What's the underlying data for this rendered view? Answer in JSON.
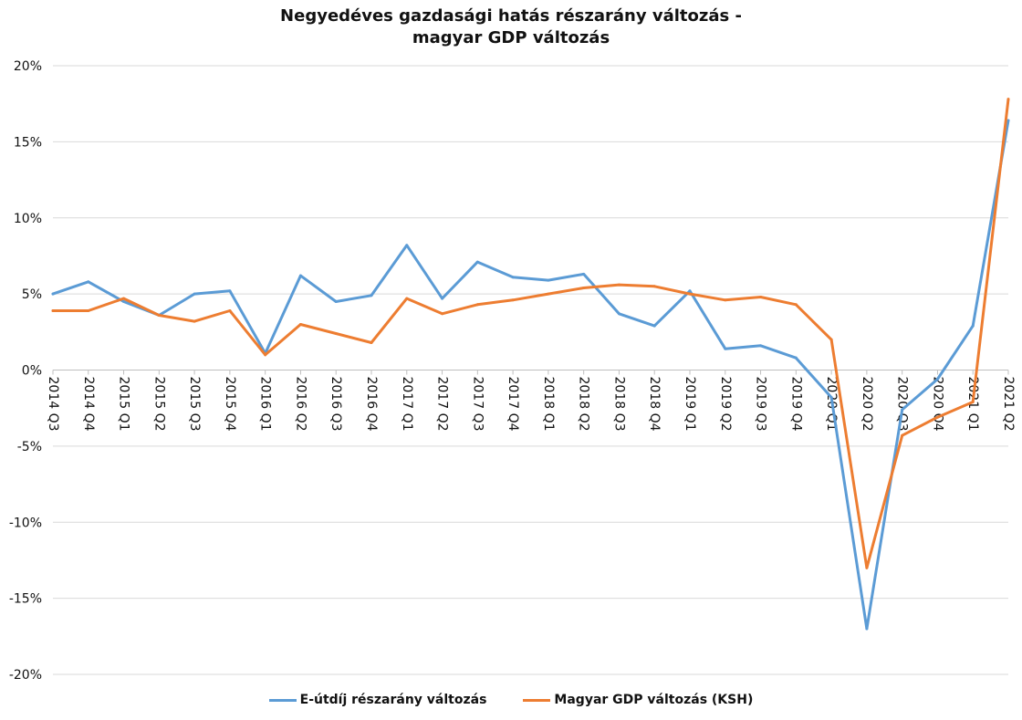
{
  "chart_data": {
    "type": "line",
    "title_line1": "Negyedéves gazdasági hatás részarány változás -",
    "title_line2": "magyar GDP változás",
    "xlabel": "",
    "ylabel": "",
    "ylim": [
      -20,
      20
    ],
    "yticks": [
      "20%",
      "15%",
      "10%",
      "5%",
      "0%",
      "-5%",
      "-10%",
      "-15%",
      "-20%"
    ],
    "ytick_values": [
      20,
      15,
      10,
      5,
      0,
      -5,
      -10,
      -15,
      -20
    ],
    "grid": true,
    "legend_position": "bottom",
    "categories": [
      "2014 Q3",
      "2014 Q4",
      "2015 Q1",
      "2015 Q2",
      "2015 Q3",
      "2015 Q4",
      "2016 Q1",
      "2016 Q2",
      "2016 Q3",
      "2016 Q4",
      "2017 Q1",
      "2017 Q2",
      "2017 Q3",
      "2017 Q4",
      "2018 Q1",
      "2018 Q2",
      "2018 Q3",
      "2018 Q4",
      "2019 Q1",
      "2019 Q2",
      "2019 Q3",
      "2019 Q4",
      "2020 Q1",
      "2020 Q2",
      "2020 Q3",
      "2020 Q4",
      "2021 Q1",
      "2021 Q2"
    ],
    "series": [
      {
        "name": "E-útdíj részarány változás",
        "color": "#5b9bd5",
        "values": [
          5.0,
          5.8,
          4.5,
          3.6,
          5.0,
          5.2,
          1.1,
          6.2,
          4.5,
          4.9,
          8.2,
          4.7,
          7.1,
          6.1,
          5.9,
          6.3,
          3.7,
          2.9,
          5.2,
          1.4,
          1.6,
          0.8,
          -1.8,
          -17.0,
          -2.6,
          -0.6,
          2.9,
          16.4
        ]
      },
      {
        "name": "Magyar GDP változás (KSH)",
        "color": "#ed7d31",
        "values": [
          3.9,
          3.9,
          4.7,
          3.6,
          3.2,
          3.9,
          1.0,
          3.0,
          2.4,
          1.8,
          4.7,
          3.7,
          4.3,
          4.6,
          5.0,
          5.4,
          5.6,
          5.5,
          5.0,
          4.6,
          4.8,
          4.3,
          2.0,
          -13.0,
          -4.3,
          -3.1,
          -2.1,
          17.8
        ]
      }
    ]
  }
}
